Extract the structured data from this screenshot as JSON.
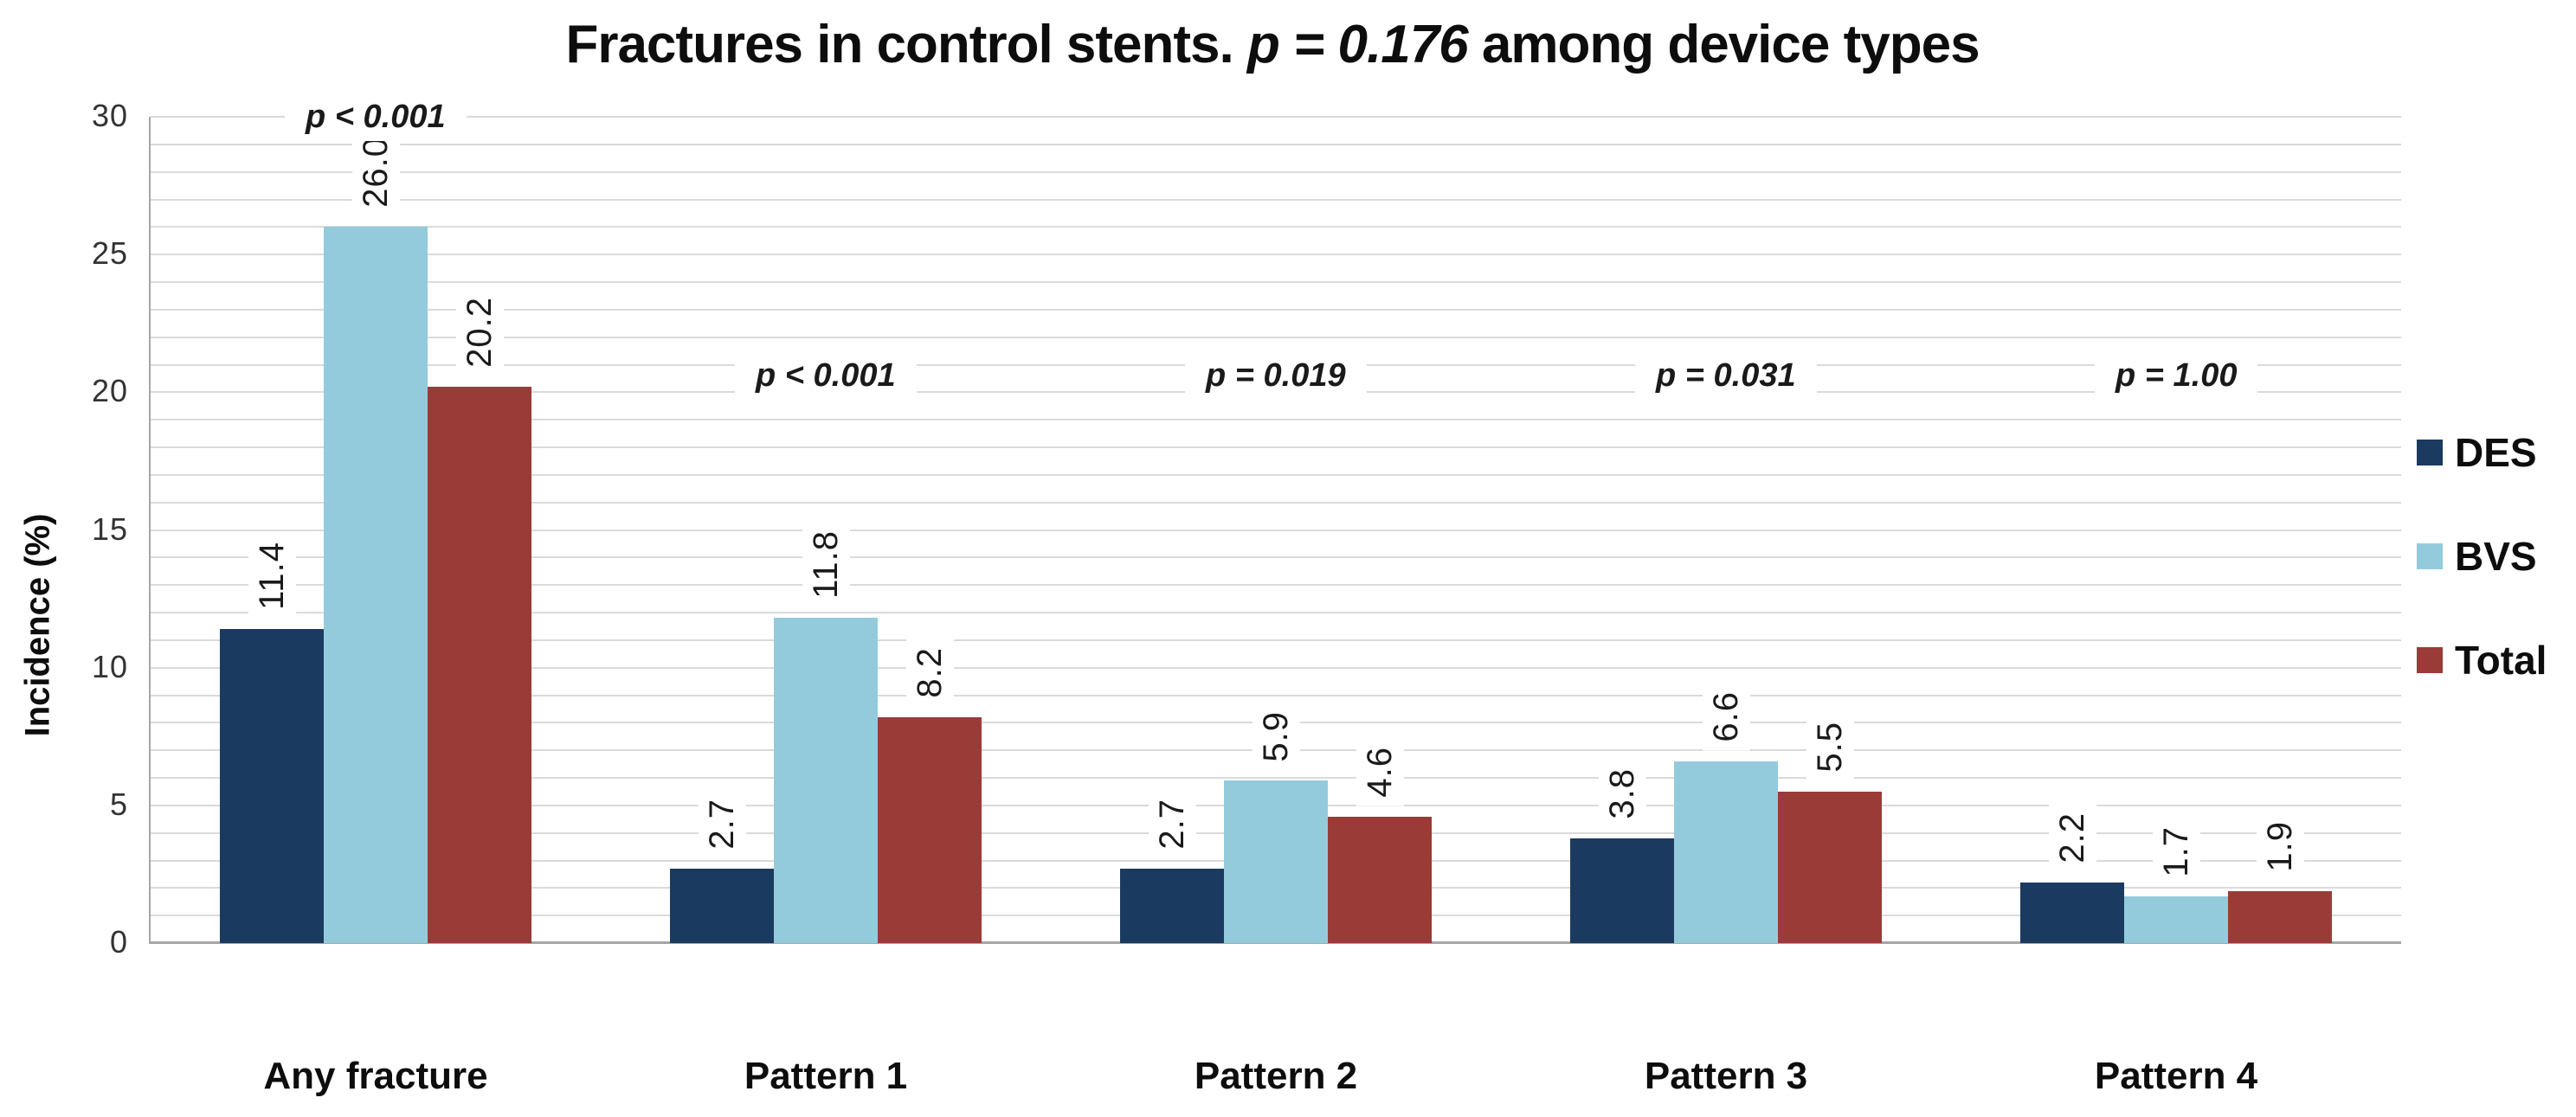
{
  "title": {
    "prefix": "Fractures in control stents. ",
    "p_segment": "p = 0.176",
    "suffix": " among device types"
  },
  "chart_data": {
    "type": "bar",
    "title": "Fractures in control stents. p = 0.176 among device types",
    "categories": [
      "Any fracture",
      "Pattern 1",
      "Pattern 2",
      "Pattern 3",
      "Pattern 4"
    ],
    "series": [
      {
        "name": "DES",
        "color": "#1B3A5F",
        "values": [
          11.4,
          2.7,
          2.7,
          3.8,
          2.2
        ]
      },
      {
        "name": "BVS",
        "color": "#94CBDC",
        "values": [
          26.0,
          11.8,
          5.9,
          6.6,
          1.7
        ]
      },
      {
        "name": "Total",
        "color": "#9B3B37",
        "values": [
          20.2,
          8.2,
          4.6,
          5.5,
          1.9
        ]
      }
    ],
    "data_label_decimals": 1,
    "p_annotations": [
      {
        "category": "Any fracture",
        "label": "p < 0.001",
        "level": 30
      },
      {
        "category": "Pattern 1",
        "label": "p < 0.001",
        "level": 20.6
      },
      {
        "category": "Pattern 2",
        "label": "p = 0.019",
        "level": 20.6
      },
      {
        "category": "Pattern 3",
        "label": "p = 0.031",
        "level": 20.6
      },
      {
        "category": "Pattern 4",
        "label": "p = 1.00",
        "level": 20.6
      }
    ],
    "xlabel": "",
    "ylabel": "Incidence (%)",
    "ylim": [
      0,
      30
    ],
    "yticks": [
      0,
      5,
      10,
      15,
      20,
      25,
      30
    ],
    "gridline_step": 1,
    "grid": true,
    "legend_position": "right"
  },
  "colors": {
    "gridline": "#DADADA",
    "axis": "#A6A6A6",
    "text": "#1A1A1A"
  }
}
